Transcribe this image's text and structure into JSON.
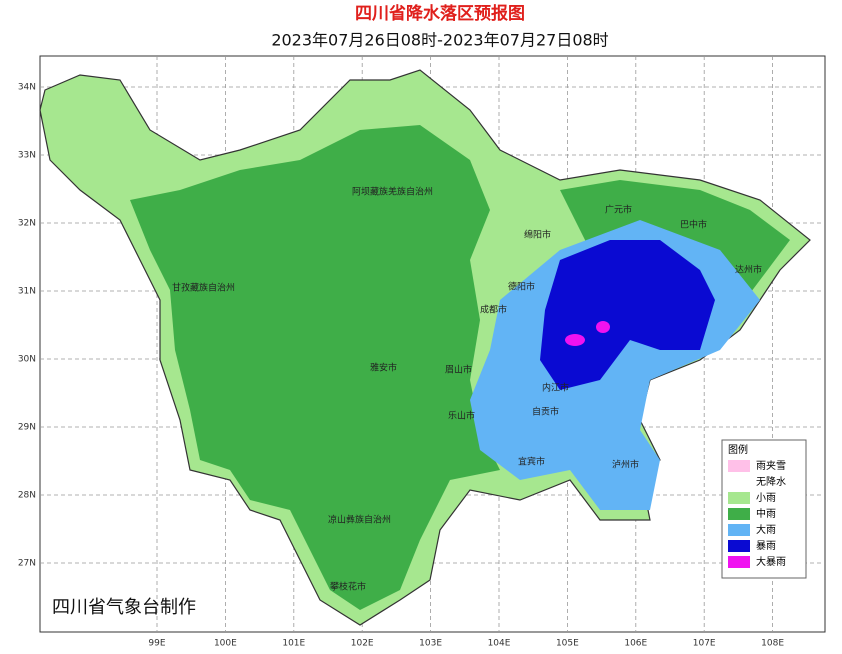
{
  "header": {
    "title": "四川省降水落区预报图",
    "subtitle": "2023年07月26日08时-2023年07月27日08时"
  },
  "axes": {
    "lat": [
      "34N",
      "33N",
      "32N",
      "31N",
      "30N",
      "29N",
      "28N",
      "27N"
    ],
    "lon": [
      "99E",
      "100E",
      "101E",
      "102E",
      "103E",
      "104E",
      "105E",
      "106E",
      "107E",
      "108E"
    ]
  },
  "places": [
    "阿坝藏族羌族自治州",
    "甘孜藏族自治州",
    "凉山彝族自治州",
    "攀枝花市",
    "雅安市",
    "眉山市",
    "乐山市",
    "成都市",
    "德阳市",
    "绵阳市",
    "广元市",
    "巴中市",
    "达州市",
    "内江市",
    "自贡市",
    "宜宾市",
    "泸州市"
  ],
  "legend": {
    "title": "图例",
    "items": [
      {
        "label": "雨夹雪",
        "color": "#ffc0e8"
      },
      {
        "label": "无降水",
        "color": "#ffffff"
      },
      {
        "label": "小雨",
        "color": "#a6e78f"
      },
      {
        "label": "中雨",
        "color": "#3fae48"
      },
      {
        "label": "大雨",
        "color": "#62b4f5"
      },
      {
        "label": "暴雨",
        "color": "#0a0ad2"
      },
      {
        "label": "大暴雨",
        "color": "#f012f0"
      }
    ]
  },
  "footer": "四川省气象台制作"
}
